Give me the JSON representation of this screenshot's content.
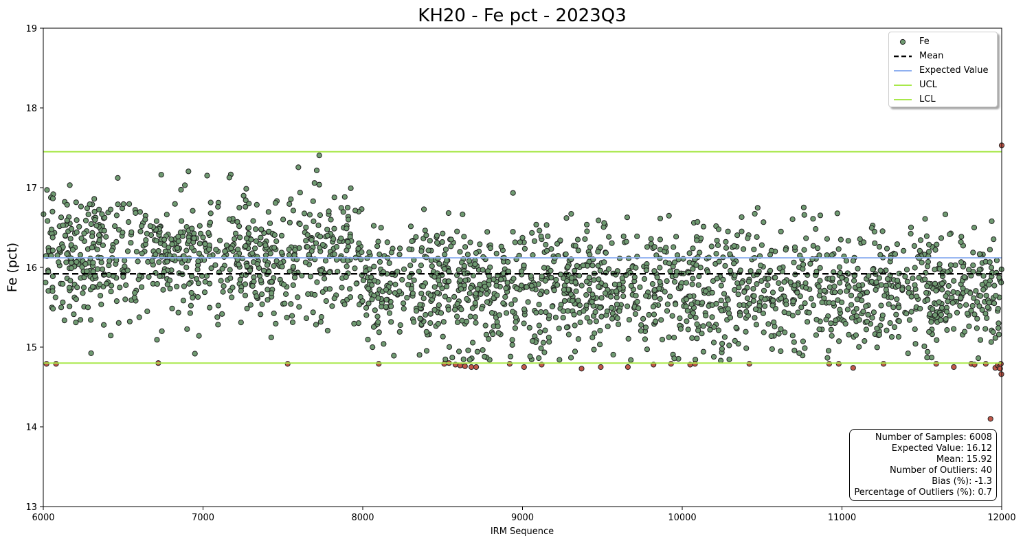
{
  "chart_data": {
    "type": "scatter",
    "title": "KH20 - Fe pct - 2023Q3",
    "xlabel": "IRM Sequence",
    "ylabel": "Fe (pct)",
    "xlim": [
      6000,
      12000
    ],
    "ylim": [
      13,
      19
    ],
    "x_ticks": [
      "6000",
      "7000",
      "8000",
      "9000",
      "10000",
      "11000",
      "12000"
    ],
    "y_ticks": [
      "13",
      "14",
      "15",
      "16",
      "17",
      "18",
      "19"
    ],
    "grid": false,
    "legend_position": "top-right",
    "n_samples": 6008,
    "reference_lines": {
      "mean": 15.92,
      "expected_value": 16.12,
      "ucl": 17.45,
      "lcl": 14.8
    },
    "series": [
      {
        "name": "Fe",
        "color": "#6f9a71",
        "note_points": "representative sample of in-control points",
        "points": []
      },
      {
        "name": "Outliers",
        "color": "#c0584a",
        "points": [
          [
            6020,
            14.79
          ],
          [
            6080,
            14.79
          ],
          [
            6720,
            14.8
          ],
          [
            7530,
            14.79
          ],
          [
            8100,
            14.79
          ],
          [
            8510,
            14.79
          ],
          [
            8540,
            14.8
          ],
          [
            8580,
            14.78
          ],
          [
            8610,
            14.77
          ],
          [
            8640,
            14.76
          ],
          [
            8680,
            14.75
          ],
          [
            8710,
            14.75
          ],
          [
            8920,
            14.79
          ],
          [
            9010,
            14.75
          ],
          [
            9120,
            14.78
          ],
          [
            9370,
            14.73
          ],
          [
            9490,
            14.75
          ],
          [
            9660,
            14.75
          ],
          [
            9820,
            14.78
          ],
          [
            9930,
            14.79
          ],
          [
            10050,
            14.78
          ],
          [
            10080,
            14.79
          ],
          [
            10420,
            14.79
          ],
          [
            10920,
            14.79
          ],
          [
            10980,
            14.79
          ],
          [
            11070,
            14.74
          ],
          [
            11260,
            14.79
          ],
          [
            11590,
            14.79
          ],
          [
            11700,
            14.75
          ],
          [
            11810,
            14.79
          ],
          [
            11830,
            14.78
          ],
          [
            11900,
            14.79
          ],
          [
            11930,
            14.1
          ],
          [
            11960,
            14.74
          ],
          [
            11975,
            14.77
          ],
          [
            11985,
            14.75
          ],
          [
            11990,
            14.73
          ],
          [
            11995,
            14.79
          ],
          [
            11998,
            14.66
          ],
          [
            12000,
            17.53
          ]
        ]
      }
    ],
    "legend": [
      {
        "label": "Fe",
        "kind": "marker",
        "color": "#6f9a71"
      },
      {
        "label": "Mean",
        "kind": "dashed",
        "color": "#000000"
      },
      {
        "label": "Expected Value",
        "kind": "line",
        "color": "#8fb0f0"
      },
      {
        "label": "UCL",
        "kind": "line",
        "color": "#a8e84a"
      },
      {
        "label": "LCL",
        "kind": "line",
        "color": "#a8e84a"
      }
    ],
    "stats": {
      "samples": "Number of Samples: 6008",
      "expected": "Expected Value: 16.12",
      "mean": "Mean: 15.92",
      "outliers": "Number of Outliers: 40",
      "bias": "Bias (%): -1.3",
      "pct_outliers": "Percentage of Outliers (%): 0.7"
    }
  }
}
